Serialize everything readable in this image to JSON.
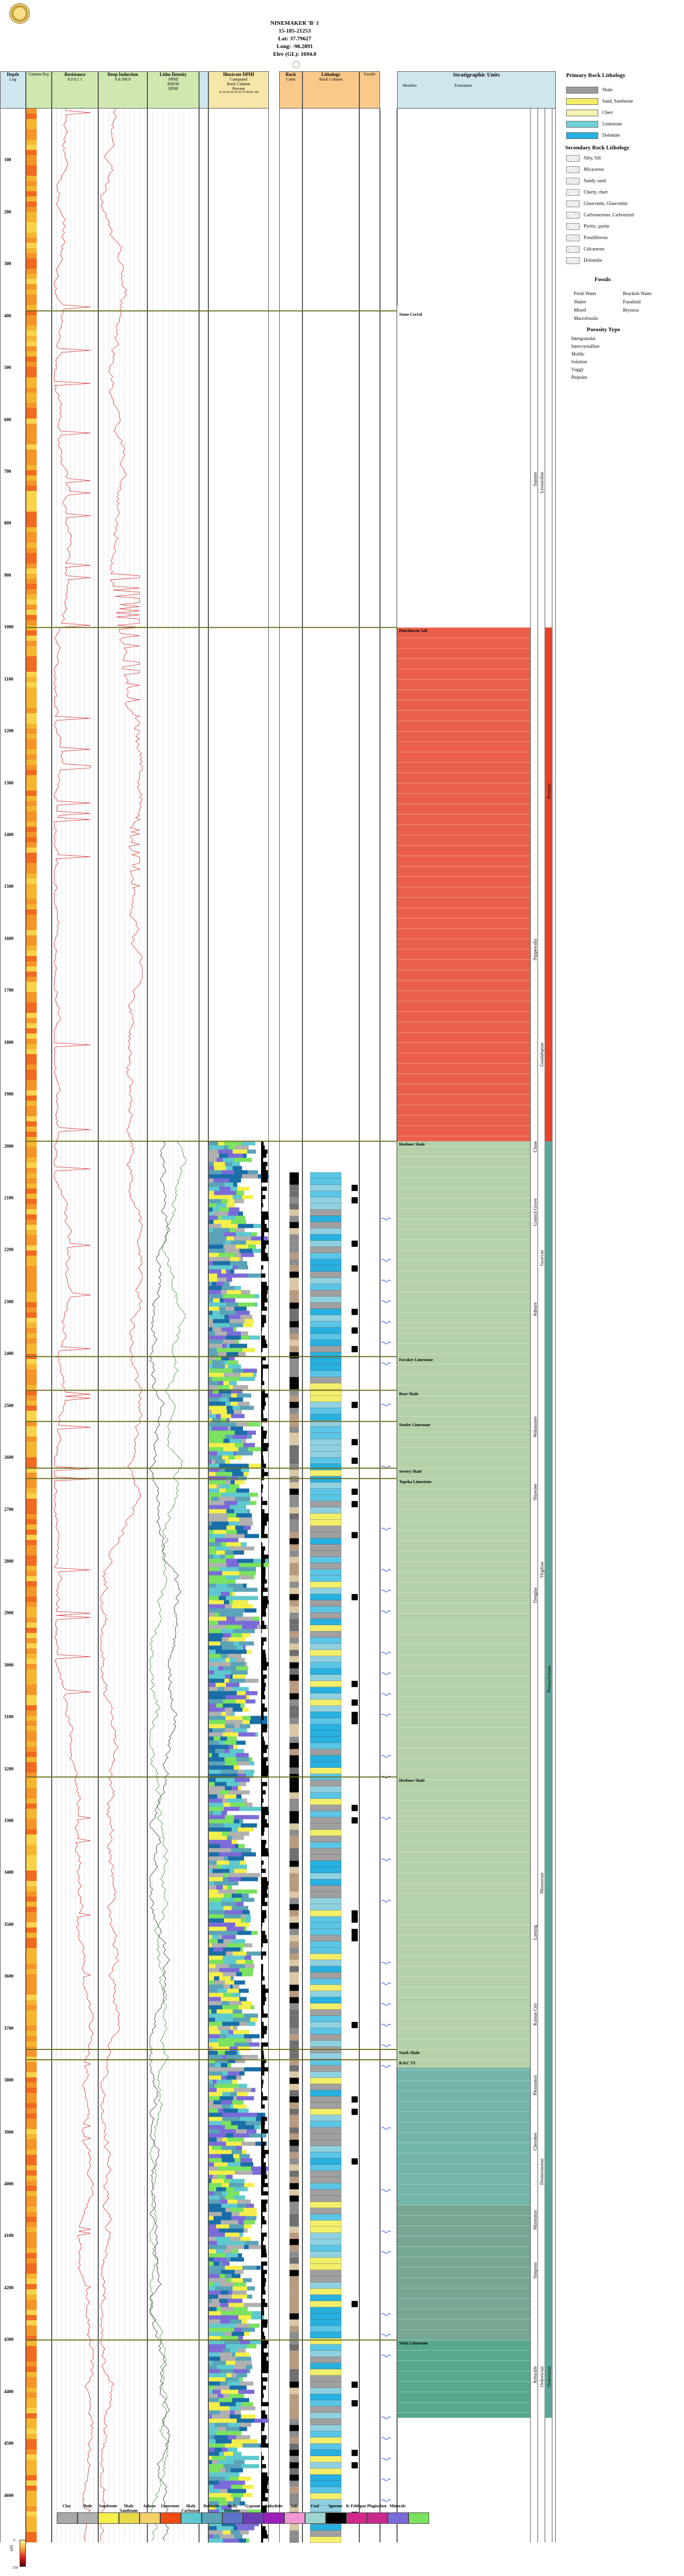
{
  "header": {
    "lines": [
      "NINEMAKER 'B' 1",
      "15-185-21253",
      "Lat: 37.79627",
      "Long: -98.2891",
      "Elev (GL): 1694.0"
    ]
  },
  "columns": {
    "depth": {
      "title": "Depth",
      "sub": "Log",
      "unit": "ft"
    },
    "gamma": {
      "title": "Gamma Ray"
    },
    "resistance": {
      "title": "Resistance",
      "sub": "0.0   0.1   1"
    },
    "induction": {
      "title": "Deep Induction",
      "sub": "0.0   200.0"
    },
    "porosity": {
      "title": "Litho Density",
      "sub1": "NPHI",
      "sub2": "RHOB",
      "sub3": "DPHI"
    },
    "lithology_pct": {
      "title": "Illustrate DPHI",
      "sub1": "Computed",
      "sub2": "Rock Column",
      "sub3": "Percent",
      "ticks": "10 20 30 40 50 60 70 80 90 100"
    },
    "rock": {
      "title": "Rock",
      "sub": "Color"
    },
    "lithology": {
      "title": "Lithology",
      "sub": "Rock Column"
    },
    "fossils": {
      "title": "Fossils"
    },
    "strat": {
      "title": "Stratigraphic Units",
      "member": "Member",
      "formation": "Formation",
      "group": "Group",
      "series": "Series",
      "system": "System"
    }
  },
  "depth_ticks": [
    "100",
    "200",
    "300",
    "400",
    "500",
    "600",
    "700",
    "800",
    "900",
    "1000",
    "1100",
    "1200",
    "1300",
    "1400",
    "1500",
    "1600",
    "1700",
    "1800",
    "1900",
    "2000",
    "2100",
    "2200",
    "2300",
    "2400",
    "2500",
    "2600",
    "2700",
    "2800",
    "2900",
    "3000",
    "3100",
    "3200",
    "3300",
    "3400",
    "3500",
    "3600",
    "3700",
    "3800",
    "3900",
    "4000",
    "4100",
    "4200",
    "4300",
    "4400",
    "4500",
    "4600"
  ],
  "tops": [
    {
      "name": "Stone Corral",
      "sub": "B-TOPS"
    },
    {
      "name": "Hutchinson Salt",
      "sub": ""
    },
    {
      "name": "Heebner Shale",
      "sub": ""
    },
    {
      "name": "Foraker Limestone",
      "sub": ""
    },
    {
      "name": "Root Shale",
      "sub": ""
    },
    {
      "name": "Stotler Limestone",
      "sub": ""
    },
    {
      "name": "Severy Shale",
      "sub": ""
    },
    {
      "name": "Topeka Limestone",
      "sub": ""
    },
    {
      "name": "Heebner Shale",
      "sub": ""
    },
    {
      "name": "Stark Shale",
      "sub": ""
    },
    {
      "name": "B-KC TS",
      "sub": ""
    },
    {
      "name": "Viola Limestone",
      "sub": "B-ARBK"
    }
  ],
  "strat_groups": [
    "Sumner",
    "Nippewalla",
    "Chase",
    "Council Grove",
    "Admire",
    "Wabaunsee",
    "Shawnee",
    "Douglas",
    "Lansing",
    "Kansas City",
    "Pleasanton",
    "Cherokee",
    "Marmaton",
    "Simpson",
    "Arbuckle"
  ],
  "strat_series": [
    "Leonardian",
    "Guadalupian",
    "Gearyan",
    "Virgilian",
    "Missourian",
    "Desmoinesian",
    "Ordovician"
  ],
  "strat_system": [
    "Permian",
    "Pennsylvanian",
    "Ordovician"
  ],
  "legend": {
    "primary_title": "Primary Rock Lithology",
    "primary": [
      {
        "label": "Shale",
        "color": "#9a9a9a"
      },
      {
        "label": "Sand, Sandstone",
        "color": "#f4ef6a"
      },
      {
        "label": "Chert",
        "color": "#f7f3b0"
      },
      {
        "label": "Limestone",
        "color": "#6fd3d9"
      },
      {
        "label": "Dolomite",
        "color": "#27b0e0"
      }
    ],
    "secondary_title": "Secondary Rock Lithology",
    "secondary": [
      "Silty, Silt",
      "Micaceous",
      "Sandy, sand",
      "Cherty, chert",
      "Glauconite, Glauconitic",
      "Carbonaceous, Carbonized",
      "Pyritic, pyrite",
      "Fossiliferous",
      "Calcareous",
      "Dolomitic"
    ],
    "fossils_title": "Fossils",
    "fossils": [
      "Fresh Water",
      "Brackish Water",
      "Shales",
      "Fusulinid",
      "Mixed",
      "Bryozoa"
    ],
    "fossils_extra": [
      "Macrofossils"
    ],
    "porosity_title": "Porosity Type",
    "porosity": [
      "Intergranular",
      "Intercrystalline",
      "Moldic",
      "Solution",
      "Vuggy",
      "Pinpoint"
    ]
  },
  "bottom_legend": [
    {
      "label": "Clay",
      "color": "#a8a8a8"
    },
    {
      "label": "Shale",
      "color": "#b0b0b0"
    },
    {
      "label": "Sandstone",
      "color": "#f4ef4a"
    },
    {
      "label": "Shaly Sandstone",
      "color": "#e8d84a"
    },
    {
      "label": "Arkose",
      "color": "#f3d06a"
    },
    {
      "label": "Limestone",
      "color": "#f14b14"
    },
    {
      "label": "Shaly Carbonate",
      "color": "#5ec9cf"
    },
    {
      "label": "Dolomite",
      "color": "#5aa3b8"
    },
    {
      "label": "Shaly Dolomite",
      "color": "#5c73c8"
    },
    {
      "label": "Gypsum",
      "color": "#6c3fb1"
    },
    {
      "label": "Anhydrite",
      "color": "#9b1fb8"
    },
    {
      "label": "Salt",
      "color": "#f098d4"
    },
    {
      "label": "Coal",
      "color": "#9fd7cf"
    },
    {
      "label": "Igneous",
      "color": "#000000"
    },
    {
      "label": "K-Feldspar",
      "color": "#d4278a"
    },
    {
      "label": "Plagioclase",
      "color": "#c82a8c"
    },
    {
      "label": "Minerals",
      "color": "#7b6bd8"
    },
    {
      "label": "",
      "color": "#7be25f"
    }
  ],
  "scale_bar": {
    "top": "0",
    "bottom": "150",
    "label": "API"
  },
  "colors": {
    "red_band": "#e8432a",
    "green_band": "#a8c99a",
    "teal_band": "#5aa89a",
    "curve_red": "#d21f1f",
    "curve_green": "#2f8a2f"
  }
}
